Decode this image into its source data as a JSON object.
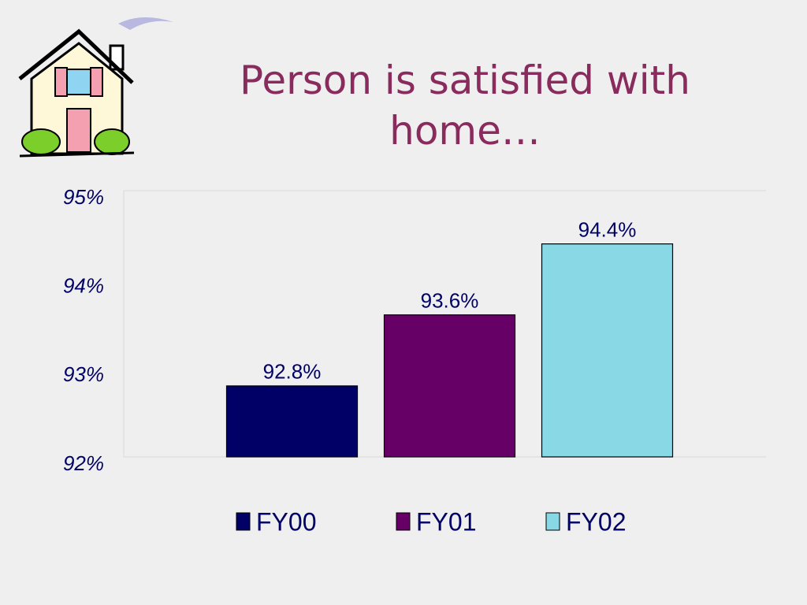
{
  "chart_data": {
    "type": "bar",
    "title": "Person is satisfied with home…",
    "categories": [
      null
    ],
    "series": [
      {
        "name": "FY00",
        "color": "#000066",
        "values": [
          92.8
        ],
        "value_labels": [
          "92.8%"
        ]
      },
      {
        "name": "FY01",
        "color": "#660066",
        "values": [
          93.6
        ],
        "value_labels": [
          "93.6%"
        ]
      },
      {
        "name": "FY02",
        "color": "#88d8e6",
        "values": [
          94.4
        ],
        "value_labels": [
          "94.4%"
        ]
      }
    ],
    "ylim": [
      92,
      95
    ],
    "yticks": [
      {
        "value": 92,
        "label": "92%"
      },
      {
        "value": 93,
        "label": "93%"
      },
      {
        "value": 94,
        "label": "94%"
      },
      {
        "value": 95,
        "label": "95%"
      }
    ],
    "grid": true,
    "legend": "bottom"
  }
}
